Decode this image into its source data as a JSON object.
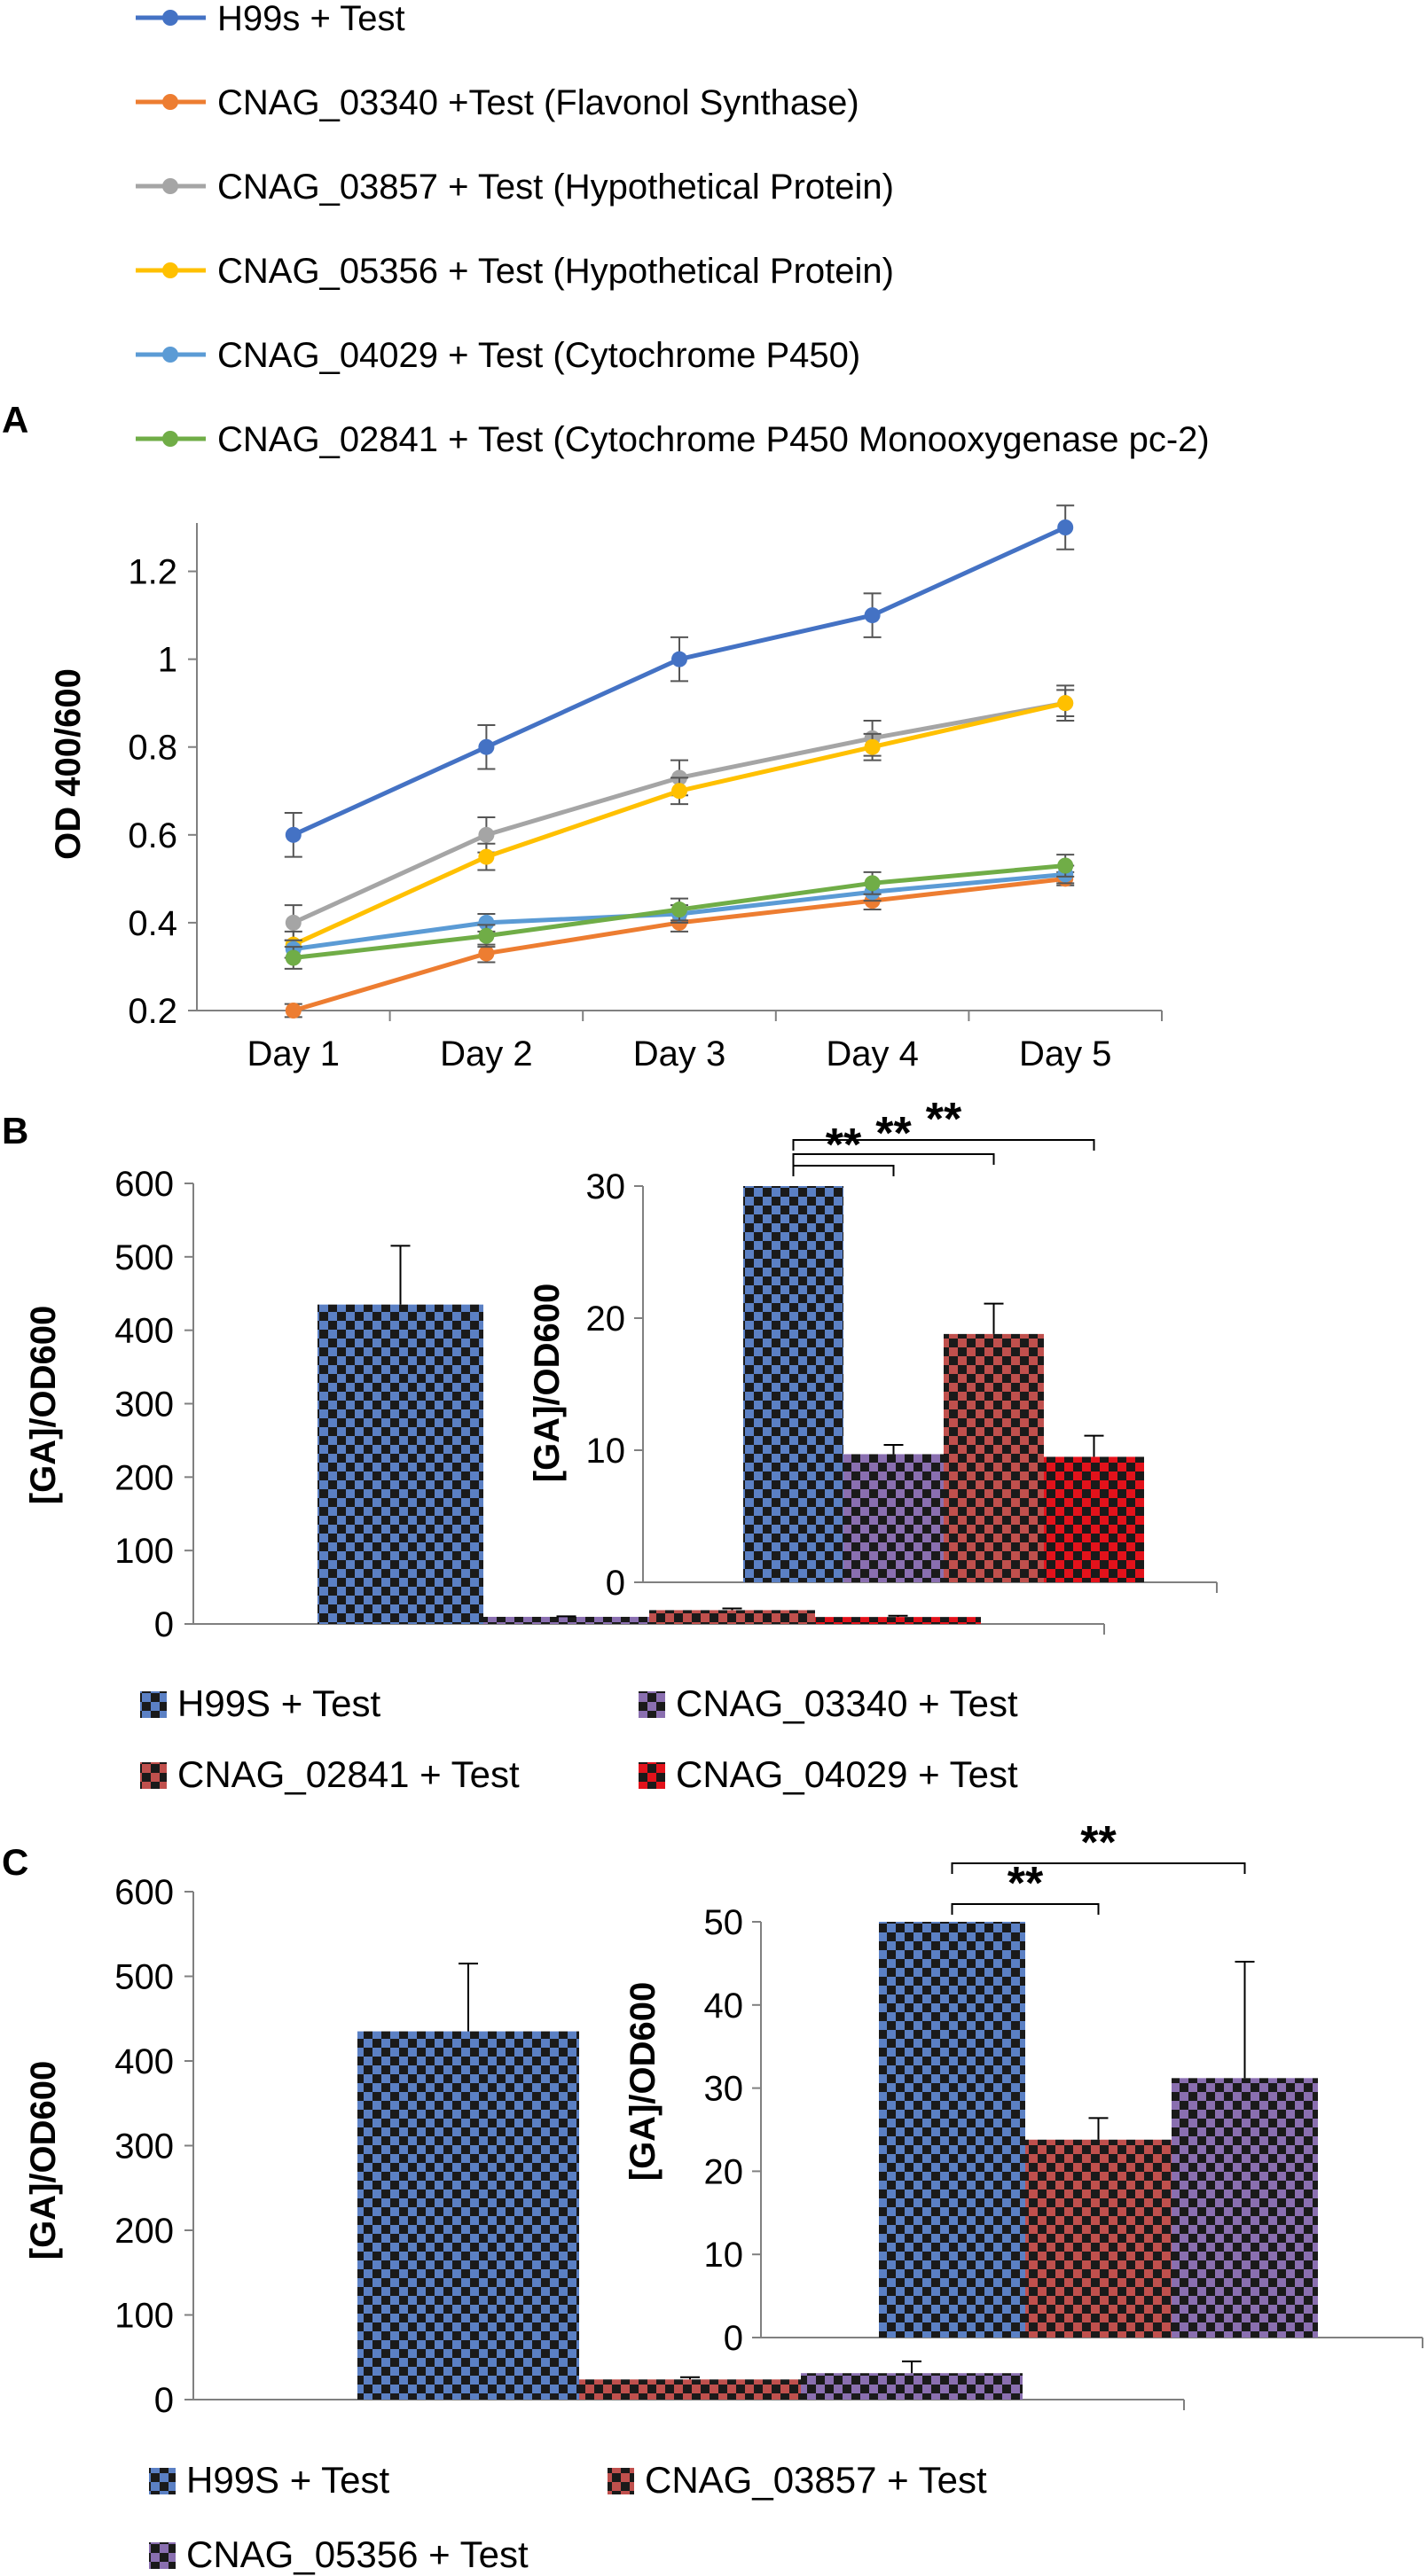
{
  "colors": {
    "blue": "#4472C4",
    "orange": "#ED7D31",
    "gray": "#A5A5A5",
    "yellow": "#FFC000",
    "lightblue": "#5B9BD5",
    "green": "#70AD47",
    "axis": "#808080",
    "checker_dark": "#1a1a1a",
    "checker_blue": "#5b80c4",
    "checker_purple": "#8a6fb0",
    "checker_rose": "#c0504d",
    "checker_red": "#e3121b"
  },
  "chart_data": [
    {
      "panel": "A",
      "type": "line",
      "ylabel": "OD 400/600",
      "ylim": [
        0.2,
        1.3
      ],
      "yticks": [
        "0.2",
        "0.4",
        "0.6",
        "0.8",
        "1",
        "1.2"
      ],
      "categories": [
        "Day 1",
        "Day 2",
        "Day 3",
        "Day 4",
        "Day 5"
      ],
      "series": [
        {
          "name": "H99s + Test",
          "color_key": "blue",
          "values": [
            0.6,
            0.8,
            1.0,
            1.1,
            1.3
          ],
          "errors": [
            0.05,
            0.05,
            0.05,
            0.05,
            0.05
          ]
        },
        {
          "name": "CNAG_03340 +Test (Flavonol Synthase)",
          "color_key": "orange",
          "values": [
            0.2,
            0.33,
            0.4,
            0.45,
            0.5
          ],
          "errors": [
            0.015,
            0.02,
            0.02,
            0.02,
            0.015
          ]
        },
        {
          "name": "CNAG_03857 + Test (Hypothetical Protein)",
          "color_key": "gray",
          "values": [
            0.4,
            0.6,
            0.73,
            0.82,
            0.9
          ],
          "errors": [
            0.04,
            0.04,
            0.04,
            0.04,
            0.04
          ]
        },
        {
          "name": "CNAG_05356 + Test (Hypothetical Protein)",
          "color_key": "yellow",
          "values": [
            0.35,
            0.55,
            0.7,
            0.8,
            0.9
          ],
          "errors": [
            0.03,
            0.03,
            0.03,
            0.03,
            0.03
          ]
        },
        {
          "name": "CNAG_04029 + Test (Cytochrome P450)",
          "color_key": "lightblue",
          "values": [
            0.34,
            0.4,
            0.42,
            0.47,
            0.51
          ],
          "errors": [
            0.02,
            0.02,
            0.02,
            0.02,
            0.02
          ]
        },
        {
          "name": "CNAG_02841 + Test (Cytochrome P450 Monooxygenase pc-2)",
          "color_key": "green",
          "values": [
            0.32,
            0.37,
            0.43,
            0.49,
            0.53
          ],
          "errors": [
            0.025,
            0.025,
            0.025,
            0.025,
            0.025
          ]
        }
      ]
    },
    {
      "panel": "B",
      "type": "bar",
      "ylabel": "[GA]/OD600",
      "ylim": [
        0,
        600
      ],
      "yticks": [
        "0",
        "100",
        "200",
        "300",
        "400",
        "500",
        "600"
      ],
      "categories": [
        "H99S + Test",
        "CNAG_03340 + Test",
        "CNAG_02841 + Test",
        "CNAG_04029 + Test"
      ],
      "values": [
        435,
        9.7,
        18.8,
        9.5
      ],
      "errors": [
        80,
        0.7,
        2.3,
        1.6
      ],
      "fill_keys": [
        "checker_blue",
        "checker_purple",
        "checker_rose",
        "checker_red"
      ],
      "inset": {
        "ylabel": "[GA]/OD600",
        "ylim": [
          0,
          30
        ],
        "yticks": [
          "0",
          "10",
          "20",
          "30"
        ],
        "significance": [
          "**",
          "**",
          "**"
        ]
      }
    },
    {
      "panel": "C",
      "type": "bar",
      "ylabel": "[GA]/OD600",
      "ylim": [
        0,
        600
      ],
      "yticks": [
        "0",
        "100",
        "200",
        "300",
        "400",
        "500",
        "600"
      ],
      "categories": [
        "H99S + Test",
        "CNAG_03857 + Test",
        "CNAG_05356 + Test"
      ],
      "values": [
        435,
        23.8,
        31.2
      ],
      "errors": [
        80,
        2.6,
        14
      ],
      "fill_keys": [
        "checker_blue",
        "checker_rose",
        "checker_purple"
      ],
      "inset": {
        "ylabel": "[GA]/OD600",
        "ylim": [
          0,
          50
        ],
        "yticks": [
          "0",
          "10",
          "20",
          "30",
          "40",
          "50"
        ],
        "significance": [
          "**",
          "**"
        ]
      }
    }
  ],
  "panel_labels": [
    "A",
    "B",
    "C"
  ]
}
